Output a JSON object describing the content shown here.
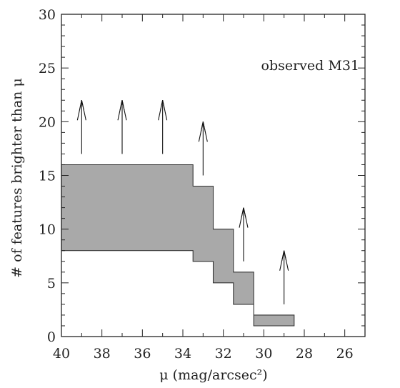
{
  "chart_data": {
    "type": "area",
    "annotation": "observed M31",
    "xlabel": "μ (mag/arcsec²)",
    "ylabel": "# of features brighter than μ",
    "xlim": [
      40,
      25
    ],
    "ylim": [
      0,
      30
    ],
    "x_ticks": [
      40,
      38,
      36,
      34,
      32,
      30,
      28,
      26
    ],
    "y_ticks": [
      0,
      5,
      10,
      15,
      20,
      25,
      30
    ],
    "band": [
      {
        "x_bright": 33.5,
        "x_faint": 40,
        "lower": 8,
        "upper": 16
      },
      {
        "x_bright": 32.5,
        "x_faint": 33.5,
        "lower": 7,
        "upper": 14
      },
      {
        "x_bright": 31.5,
        "x_faint": 32.5,
        "lower": 5,
        "upper": 10
      },
      {
        "x_bright": 30.5,
        "x_faint": 31.5,
        "lower": 3,
        "upper": 6
      },
      {
        "x_bright": 28.5,
        "x_faint": 30.5,
        "lower": 1,
        "upper": 2
      }
    ],
    "lower_limit_arrows": [
      {
        "x": 39.0,
        "y_start": 17,
        "y_end": 22
      },
      {
        "x": 37.0,
        "y_start": 17,
        "y_end": 22
      },
      {
        "x": 35.0,
        "y_start": 17,
        "y_end": 22
      },
      {
        "x": 33.0,
        "y_start": 15,
        "y_end": 20
      },
      {
        "x": 31.0,
        "y_start": 7,
        "y_end": 12
      },
      {
        "x": 29.0,
        "y_start": 3,
        "y_end": 8
      }
    ],
    "colors": {
      "band_fill": "#a9a9a9",
      "band_edge": "#333333",
      "frame": "#222222",
      "arrow": "#111111"
    }
  }
}
